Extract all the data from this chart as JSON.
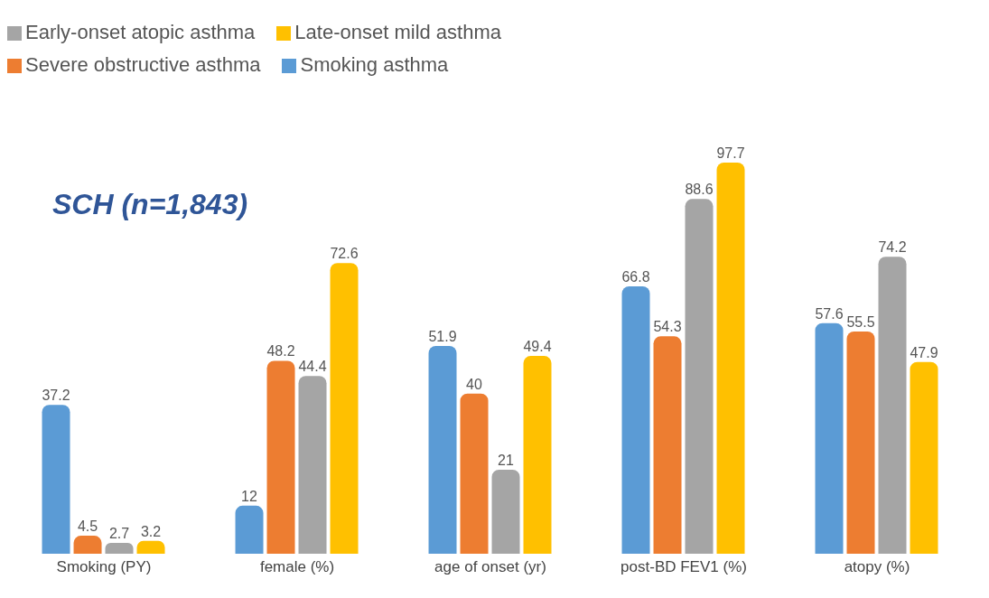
{
  "chart_data": {
    "type": "bar",
    "title": "SCH (n=1,843)",
    "categories": [
      "Smoking (PY)",
      "female (%)",
      "age of onset (yr)",
      "post-BD FEV1 (%)",
      "atopy (%)"
    ],
    "series": [
      {
        "name": "Smoking asthma",
        "color": "#5b9bd5",
        "values": [
          37.2,
          12,
          51.9,
          66.8,
          57.6
        ]
      },
      {
        "name": "Severe obstructive asthma",
        "color": "#ed7d31",
        "values": [
          4.5,
          48.2,
          40,
          54.3,
          55.5
        ]
      },
      {
        "name": "Early-onset atopic asthma",
        "color": "#a5a5a5",
        "values": [
          2.7,
          44.4,
          21,
          88.6,
          74.2
        ]
      },
      {
        "name": "Late-onset mild asthma",
        "color": "#ffc000",
        "values": [
          3.2,
          72.6,
          49.4,
          97.7,
          47.9
        ]
      }
    ],
    "data_labels": true,
    "legend": "top left",
    "grid": false
  }
}
